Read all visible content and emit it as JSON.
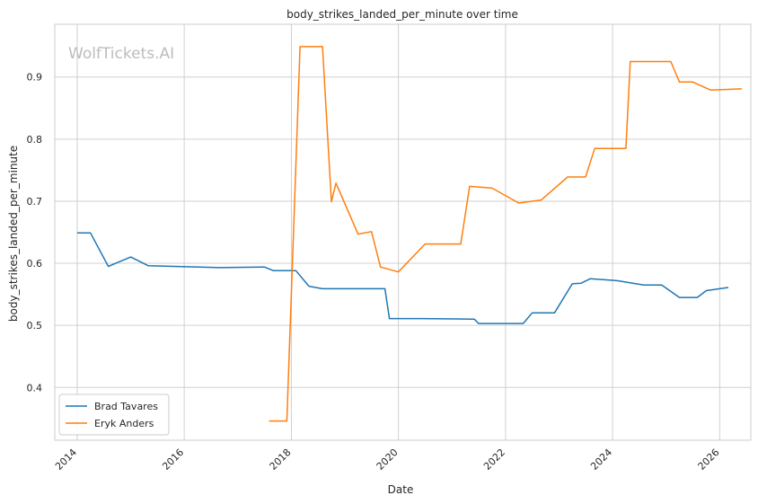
{
  "chart_data": {
    "type": "line",
    "title": "body_strikes_landed_per_minute over time",
    "xlabel": "Date",
    "ylabel": "body_strikes_landed_per_minute",
    "watermark": "WolfTickets.AI",
    "xlim": [
      "2013-08-01",
      "2026-08-01"
    ],
    "ylim": [
      0.315,
      0.985
    ],
    "x_ticks": [
      "2014-01-01",
      "2016-01-01",
      "2018-01-01",
      "2020-01-01",
      "2022-01-01",
      "2024-01-01",
      "2026-01-01"
    ],
    "x_tick_labels": [
      "2014",
      "2016",
      "2018",
      "2020",
      "2022",
      "2024",
      "2026"
    ],
    "y_ticks": [
      0.4,
      0.5,
      0.6,
      0.7,
      0.8,
      0.9
    ],
    "y_tick_labels": [
      "0.4",
      "0.5",
      "0.6",
      "0.7",
      "0.8",
      "0.9"
    ],
    "grid": true,
    "legend_position": "bottom-left",
    "series": [
      {
        "name": "Brad Tavares",
        "color": "#1f77b4",
        "points": [
          [
            "2014-01-01",
            0.649
          ],
          [
            "2014-04-01",
            0.649
          ],
          [
            "2014-08-01",
            0.595
          ],
          [
            "2015-01-01",
            0.61
          ],
          [
            "2015-05-01",
            0.596
          ],
          [
            "2016-09-01",
            0.593
          ],
          [
            "2017-07-01",
            0.594
          ],
          [
            "2017-09-01",
            0.588
          ],
          [
            "2018-02-01",
            0.588
          ],
          [
            "2018-05-01",
            0.563
          ],
          [
            "2018-08-01",
            0.559
          ],
          [
            "2019-10-01",
            0.559
          ],
          [
            "2019-11-01",
            0.511
          ],
          [
            "2020-06-01",
            0.511
          ],
          [
            "2021-06-01",
            0.51
          ],
          [
            "2021-07-01",
            0.503
          ],
          [
            "2022-05-01",
            0.503
          ],
          [
            "2022-07-01",
            0.52
          ],
          [
            "2022-12-01",
            0.52
          ],
          [
            "2023-04-01",
            0.567
          ],
          [
            "2023-06-01",
            0.568
          ],
          [
            "2023-08-01",
            0.575
          ],
          [
            "2024-02-01",
            0.572
          ],
          [
            "2024-08-01",
            0.565
          ],
          [
            "2024-12-01",
            0.565
          ],
          [
            "2025-04-01",
            0.545
          ],
          [
            "2025-08-01",
            0.545
          ],
          [
            "2025-10-01",
            0.556
          ],
          [
            "2026-03-01",
            0.561
          ]
        ]
      },
      {
        "name": "Eryk Anders",
        "color": "#ff7f0e",
        "points": [
          [
            "2017-08-01",
            0.346
          ],
          [
            "2017-12-01",
            0.346
          ],
          [
            "2018-03-01",
            0.949
          ],
          [
            "2018-08-01",
            0.949
          ],
          [
            "2018-10-01",
            0.699
          ],
          [
            "2018-11-01",
            0.729
          ],
          [
            "2019-04-01",
            0.647
          ],
          [
            "2019-07-01",
            0.651
          ],
          [
            "2019-09-01",
            0.594
          ],
          [
            "2020-01-01",
            0.586
          ],
          [
            "2020-07-01",
            0.631
          ],
          [
            "2021-03-01",
            0.631
          ],
          [
            "2021-05-01",
            0.724
          ],
          [
            "2021-10-01",
            0.721
          ],
          [
            "2022-04-01",
            0.697
          ],
          [
            "2022-09-01",
            0.702
          ],
          [
            "2023-03-01",
            0.739
          ],
          [
            "2023-07-01",
            0.739
          ],
          [
            "2023-09-01",
            0.785
          ],
          [
            "2024-04-01",
            0.785
          ],
          [
            "2024-05-01",
            0.925
          ],
          [
            "2025-02-01",
            0.925
          ],
          [
            "2025-04-01",
            0.892
          ],
          [
            "2025-07-01",
            0.892
          ],
          [
            "2025-11-01",
            0.879
          ],
          [
            "2026-06-01",
            0.881
          ]
        ]
      }
    ]
  }
}
